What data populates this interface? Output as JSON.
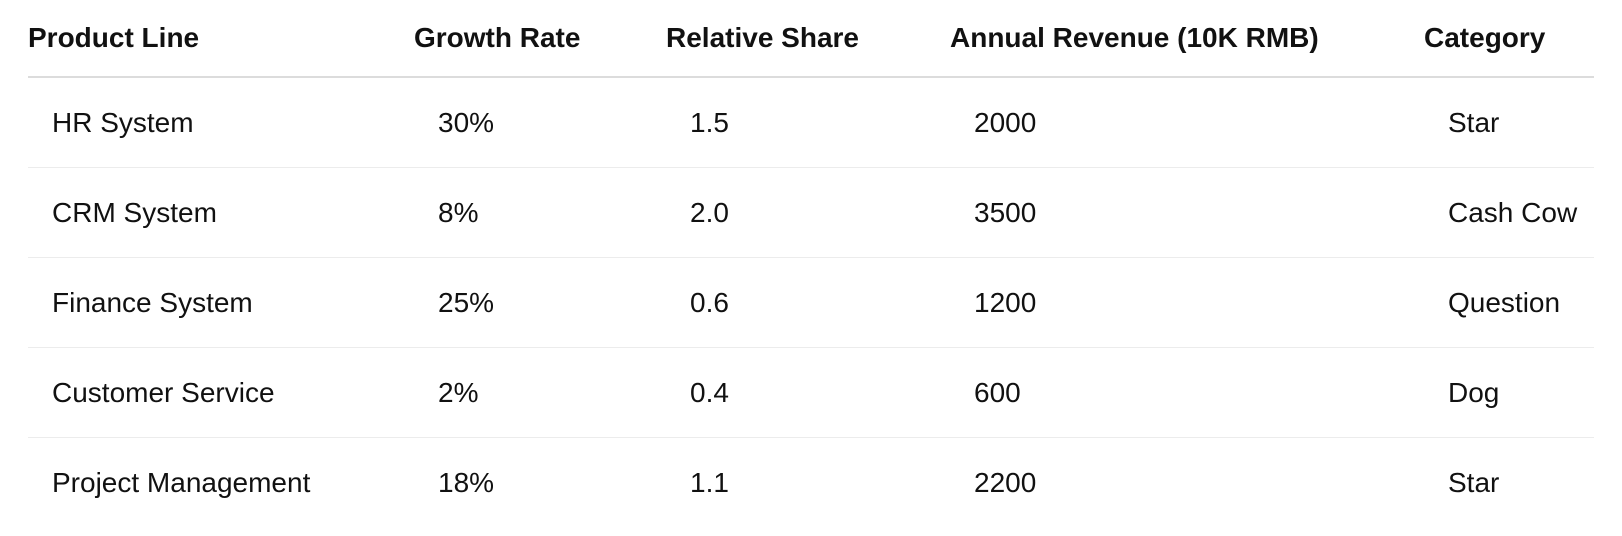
{
  "table": {
    "headers": [
      "Product Line",
      "Growth Rate",
      "Relative Share",
      "Annual Revenue (10K RMB)",
      "Category"
    ],
    "rows": [
      [
        "HR System",
        "30%",
        "1.5",
        "2000",
        "Star"
      ],
      [
        "CRM System",
        "8%",
        "2.0",
        "3500",
        "Cash Cow"
      ],
      [
        "Finance System",
        "25%",
        "0.6",
        "1200",
        "Question"
      ],
      [
        "Customer Service",
        "2%",
        "0.4",
        "600",
        "Dog"
      ],
      [
        "Project Management",
        "18%",
        "1.1",
        "2200",
        "Star"
      ]
    ]
  }
}
